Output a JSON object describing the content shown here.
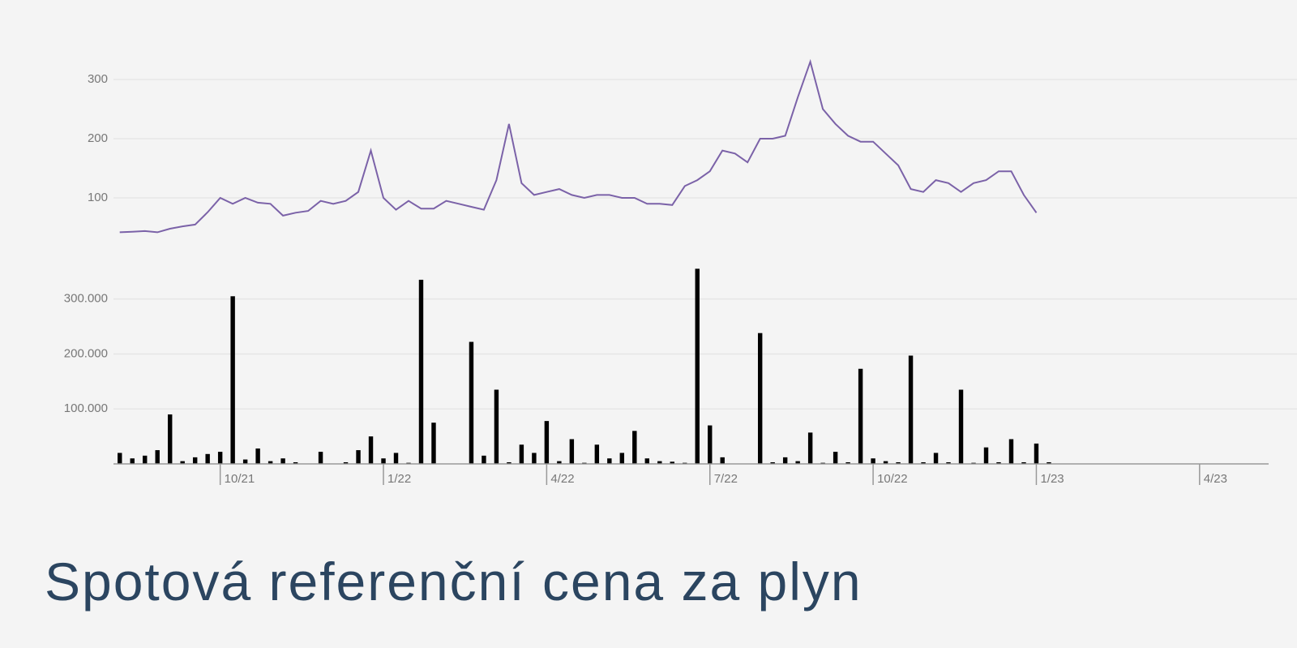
{
  "title": "Spotová referenční cena za plyn",
  "chart_data": [
    {
      "type": "line",
      "color": "#7b62a8",
      "ylim": [
        35,
        350
      ],
      "yticks": [
        100,
        200,
        300
      ],
      "grid": true,
      "values": [
        42,
        43,
        44,
        42,
        48,
        52,
        55,
        76,
        100,
        90,
        100,
        92,
        90,
        70,
        75,
        78,
        95,
        90,
        95,
        110,
        180,
        100,
        80,
        95,
        82,
        82,
        95,
        90,
        85,
        80,
        130,
        225,
        125,
        105,
        110,
        115,
        105,
        100,
        105,
        105,
        100,
        100,
        90,
        90,
        88,
        120,
        130,
        145,
        180,
        175,
        160,
        200,
        200,
        205,
        270,
        330,
        250,
        225,
        205,
        195,
        195,
        175,
        155,
        115,
        110,
        130,
        125,
        110,
        125,
        130,
        145,
        145,
        105,
        75,
        null,
        null,
        null,
        null,
        null,
        null,
        null,
        null,
        null,
        null,
        null,
        null,
        null,
        null,
        null,
        null,
        null,
        null
      ]
    },
    {
      "type": "bar",
      "color": "#000000",
      "ylim": [
        0,
        360000
      ],
      "yticks": [
        {
          "value": 100000,
          "label": "100.000"
        },
        {
          "value": 200000,
          "label": "200.000"
        },
        {
          "value": 300000,
          "label": "300.000"
        }
      ],
      "grid": true,
      "categories": [
        null,
        null,
        null,
        null,
        null,
        null,
        null,
        null,
        "10/21",
        null,
        null,
        null,
        null,
        null,
        null,
        null,
        null,
        null,
        null,
        null,
        null,
        "1/22",
        null,
        null,
        null,
        null,
        null,
        null,
        null,
        null,
        null,
        null,
        null,
        null,
        "4/22",
        null,
        null,
        null,
        null,
        null,
        null,
        null,
        null,
        null,
        null,
        null,
        null,
        "7/22",
        null,
        null,
        null,
        null,
        null,
        null,
        null,
        null,
        null,
        null,
        null,
        null,
        "10/22",
        null,
        null,
        null,
        null,
        null,
        null,
        null,
        null,
        null,
        null,
        null,
        null,
        "1/23",
        null,
        null,
        null,
        null,
        null,
        null,
        null,
        null,
        null,
        null,
        null,
        null,
        "4/23",
        null,
        null,
        null,
        null,
        null
      ],
      "values": [
        20000,
        10000,
        15000,
        25000,
        90000,
        5000,
        12000,
        18000,
        22000,
        305000,
        8000,
        28000,
        5000,
        10000,
        3000,
        0,
        22000,
        0,
        3000,
        25000,
        50000,
        10000,
        20000,
        2000,
        335000,
        75000,
        0,
        0,
        222000,
        15000,
        135000,
        3000,
        35000,
        20000,
        78000,
        5000,
        45000,
        2000,
        35000,
        10000,
        20000,
        60000,
        10000,
        5000,
        4000,
        2000,
        355000,
        70000,
        12000,
        0,
        0,
        238000,
        3000,
        12000,
        5000,
        57000,
        2000,
        22000,
        3000,
        173000,
        10000,
        5000,
        3000,
        197000,
        3000,
        20000,
        3000,
        135000,
        2000,
        30000,
        3000,
        45000,
        3000,
        37000,
        3000,
        null,
        null,
        null,
        null,
        null,
        null,
        null,
        null,
        null,
        null,
        null,
        null,
        null,
        null,
        null,
        null,
        null
      ]
    }
  ]
}
